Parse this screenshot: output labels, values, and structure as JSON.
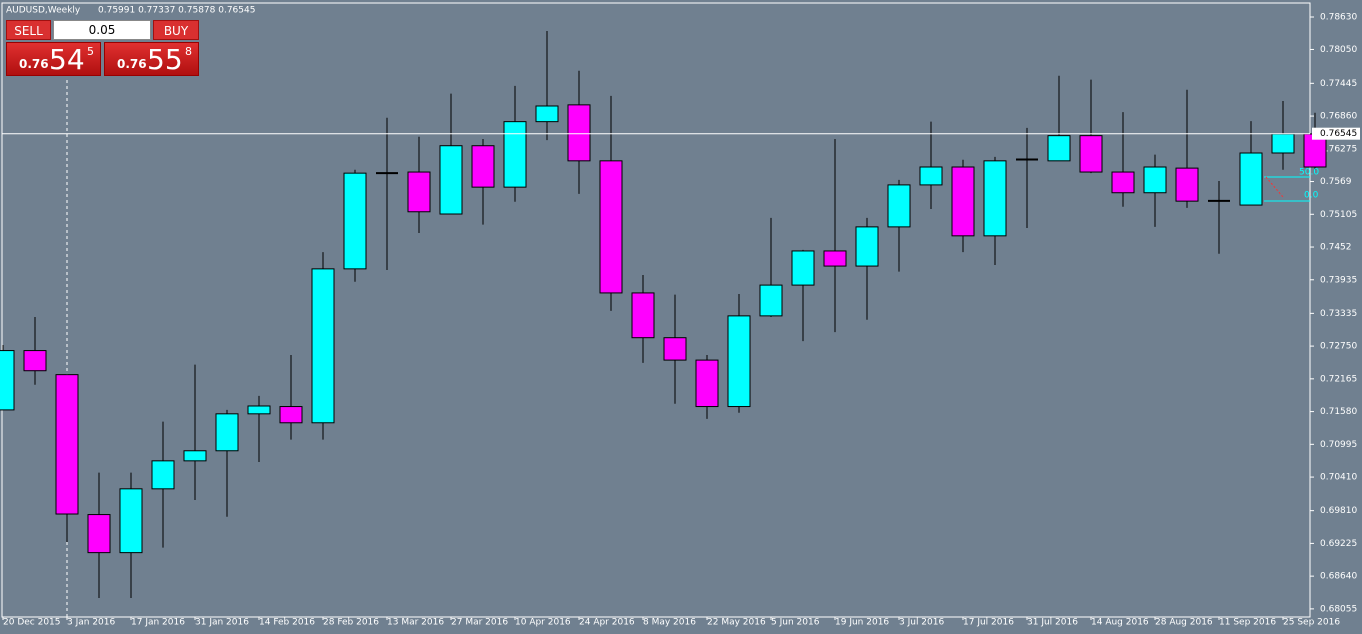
{
  "header": {
    "symbol": "AUDUSD,Weekly",
    "ohlc": "0.75991 0.77337 0.75878 0.76545"
  },
  "trade_panel": {
    "sell": "SELL",
    "buy": "BUY",
    "lot": "0.05",
    "sell_prefix": "0.76",
    "sell_big": "54",
    "sell_sup": "5",
    "buy_prefix": "0.76",
    "buy_big": "55",
    "buy_sup": "8"
  },
  "chart_data": {
    "type": "candlestick",
    "categories": [
      "20 Dec 2015",
      null,
      "3 Jan 2016",
      null,
      "17 Jan 2016",
      null,
      "31 Jan 2016",
      null,
      "14 Feb 2016",
      null,
      "28 Feb 2016",
      null,
      "13 Mar 2016",
      null,
      "27 Mar 2016",
      null,
      "10 Apr 2016",
      null,
      "24 Apr 2016",
      null,
      "8 May 2016",
      null,
      "22 May 2016",
      null,
      "5 Jun 2016",
      null,
      "19 Jun 2016",
      null,
      "3 Jul 2016",
      null,
      "17 Jul 2016",
      null,
      "31 Jul 2016",
      null,
      "14 Aug 2016",
      null,
      "28 Aug 2016",
      null,
      "11 Sep 2016",
      null,
      "25 Sep 2016",
      null
    ],
    "open": [
      0.7161,
      0.7267,
      0.7224,
      0.6974,
      0.6906,
      0.702,
      0.707,
      0.7088,
      0.7154,
      0.7167,
      0.7138,
      0.7413,
      0.7585,
      0.7586,
      0.7511,
      0.7633,
      0.7559,
      0.7676,
      0.7706,
      0.7606,
      0.737,
      0.729,
      0.725,
      0.7167,
      0.7329,
      0.7384,
      0.7445,
      0.7418,
      0.7488,
      0.7563,
      0.7595,
      0.7472,
      0.7608,
      0.7606,
      0.7651,
      0.7586,
      0.7549,
      0.7593,
      0.7535,
      0.7527,
      0.762,
      0.7654
    ],
    "high": [
      0.7277,
      0.7327,
      0.7224,
      0.7049,
      0.7049,
      0.714,
      0.7242,
      0.7161,
      0.7186,
      0.7259,
      0.7443,
      0.759,
      0.7683,
      0.7649,
      0.7726,
      0.7645,
      0.774,
      0.7838,
      0.7767,
      0.7722,
      0.7402,
      0.7367,
      0.7259,
      0.7368,
      0.7504,
      0.7447,
      0.7645,
      0.7504,
      0.7572,
      0.7676,
      0.7608,
      0.7613,
      0.7665,
      0.7758,
      0.7751,
      0.7693,
      0.7617,
      0.7733,
      0.757,
      0.7677,
      0.7713,
      0.7692
    ],
    "low": [
      0.7161,
      0.7206,
      0.6925,
      0.6825,
      0.6825,
      0.6915,
      0.7,
      0.697,
      0.7068,
      0.7108,
      0.7108,
      0.739,
      0.7411,
      0.7477,
      0.7511,
      0.7492,
      0.7533,
      0.7643,
      0.7547,
      0.7338,
      0.7245,
      0.7172,
      0.7145,
      0.7156,
      0.7327,
      0.7284,
      0.73,
      0.7322,
      0.7408,
      0.752,
      0.7443,
      0.742,
      0.7486,
      0.7606,
      0.7584,
      0.7524,
      0.7488,
      0.7522,
      0.744,
      0.7527,
      0.759,
      0.759
    ],
    "close": [
      0.7267,
      0.7231,
      0.6975,
      0.6906,
      0.702,
      0.707,
      0.7088,
      0.7154,
      0.7168,
      0.7138,
      0.7413,
      0.7584,
      0.7583,
      0.7515,
      0.7633,
      0.7559,
      0.7676,
      0.7704,
      0.7606,
      0.737,
      0.729,
      0.725,
      0.7167,
      0.7329,
      0.7384,
      0.7445,
      0.7418,
      0.7488,
      0.7563,
      0.7595,
      0.7472,
      0.7606,
      0.7609,
      0.7651,
      0.7586,
      0.7549,
      0.7595,
      0.7534,
      0.7534,
      0.762,
      0.7654,
      0.7595
    ],
    "up_color": "#00ffff",
    "down_color": "#ff00ff",
    "ylim": [
      0.6791,
      0.7888
    ],
    "yticks": [
      {
        "value": 0.7863,
        "label": "0.78630"
      },
      {
        "value": 0.7805,
        "label": "0.78050"
      },
      0.77445,
      {
        "value": 0.7686,
        "label": "0.76860"
      },
      0.76275,
      0.7569,
      0.75105,
      0.7452,
      0.73935,
      0.73335,
      {
        "value": 0.7275,
        "label": "0.72750"
      },
      0.72165,
      {
        "value": 0.7158,
        "label": "0.71580"
      },
      0.70995,
      {
        "value": 0.7041,
        "label": "0.70410"
      },
      {
        "value": 0.6981,
        "label": "0.69810"
      },
      0.69225,
      {
        "value": 0.6864,
        "label": "0.68640"
      },
      0.68055
    ],
    "current_price": 0.76545,
    "fib_labels": [
      "50.0",
      "0.0"
    ]
  }
}
